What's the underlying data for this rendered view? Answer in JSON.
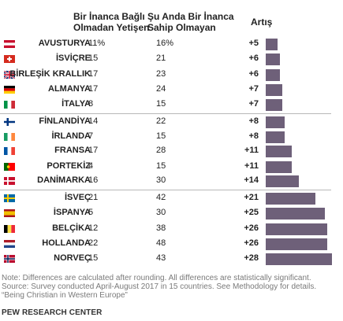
{
  "headers": {
    "col1_line1": "Bir İnanca Bağlı",
    "col1_line2": "Olmadan Yetişen",
    "col2_line1": "Şu Anda Bir İnanca",
    "col2_line2": "Sahip Olmayan",
    "col3": "Artış"
  },
  "chart_data": {
    "type": "bar",
    "orientation": "horizontal",
    "series_columns": [
      "Bir İnanca Bağlı Olmadan Yetişen",
      "Şu Anda Bir İnanca Sahip Olmayan",
      "Artış"
    ],
    "rows": [
      {
        "country": "AVUSTURYA",
        "raised": "11%",
        "current": "16%",
        "diff_label": "+5",
        "diff": 5,
        "flag": "austria-flag"
      },
      {
        "country": "İSVİÇRE",
        "raised": "15",
        "current": "21",
        "diff_label": "+6",
        "diff": 6,
        "flag": "switzerland-flag"
      },
      {
        "country": "BİRLEŞİK KRALLIK",
        "raised": "17",
        "current": "23",
        "diff_label": "+6",
        "diff": 6,
        "flag": "uk-flag"
      },
      {
        "country": "ALMANYA",
        "raised": "17",
        "current": "24",
        "diff_label": "+7",
        "diff": 7,
        "flag": "germany-flag"
      },
      {
        "country": "İTALYA",
        "raised": "8",
        "current": "15",
        "diff_label": "+7",
        "diff": 7,
        "flag": "italy-flag"
      },
      {
        "country": "FİNLANDİYA",
        "raised": "14",
        "current": "22",
        "diff_label": "+8",
        "diff": 8,
        "flag": "finland-flag"
      },
      {
        "country": "İRLANDA",
        "raised": "7",
        "current": "15",
        "diff_label": "+8",
        "diff": 8,
        "flag": "ireland-flag"
      },
      {
        "country": "FRANSA",
        "raised": "17",
        "current": "28",
        "diff_label": "+11",
        "diff": 11,
        "flag": "france-flag"
      },
      {
        "country": "PORTEKİZ",
        "raised": "4",
        "current": "15",
        "diff_label": "+11",
        "diff": 11,
        "flag": "portugal-flag"
      },
      {
        "country": "DANİMARKA",
        "raised": "16",
        "current": "30",
        "diff_label": "+14",
        "diff": 14,
        "flag": "denmark-flag"
      },
      {
        "country": "İSVEÇ",
        "raised": "21",
        "current": "42",
        "diff_label": "+21",
        "diff": 21,
        "flag": "sweden-flag"
      },
      {
        "country": "İSPANYA",
        "raised": "5",
        "current": "30",
        "diff_label": "+25",
        "diff": 25,
        "flag": "spain-flag"
      },
      {
        "country": "BELÇİKA",
        "raised": "12",
        "current": "38",
        "diff_label": "+26",
        "diff": 26,
        "flag": "belgium-flag"
      },
      {
        "country": "HOLLANDA",
        "raised": "22",
        "current": "48",
        "diff_label": "+26",
        "diff": 26,
        "flag": "netherlands-flag"
      },
      {
        "country": "NORVEÇ",
        "raised": "15",
        "current": "43",
        "diff_label": "+28",
        "diff": 28,
        "flag": "norway-flag"
      }
    ],
    "group_breaks_after": [
      4,
      9
    ],
    "xlim": [
      0,
      28
    ],
    "bar_color": "#6e6079",
    "grid": false
  },
  "notes": {
    "line1": "Note: Differences are calculated after rounding. All differences are statistically significant.",
    "line2": "Source: Survey conducted April-August 2017 in 15 countries. See Methodology for details.",
    "line3": "“Being Christian in Western Europe”"
  },
  "source_name": "PEW RESEARCH CENTER"
}
